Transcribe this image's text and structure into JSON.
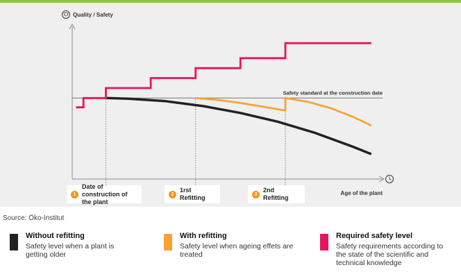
{
  "colors": {
    "accent_rule": "#8cc63f",
    "panel_bg": "#efefef",
    "without": "#222222",
    "with": "#f7a435",
    "required": "#e8145f",
    "standard_line": "#777777"
  },
  "chart_data": {
    "type": "line",
    "ylabel": "Quality / Safety",
    "xlabel": "Age of the plant",
    "y_axis_icon": "shield-icon",
    "x_axis_icon": "clock-icon",
    "grid": false,
    "reference_line": {
      "label": "Safety standard at the construction date",
      "y": 0
    },
    "series": [
      {
        "name": "Required safety level",
        "key": "required",
        "points": [
          [
            -4,
            -1.5
          ],
          [
            -2,
            -1.5
          ],
          [
            -2,
            0
          ],
          [
            4,
            0
          ],
          [
            4,
            1.6
          ],
          [
            16,
            1.6
          ],
          [
            16,
            3.2
          ],
          [
            28,
            3.2
          ],
          [
            28,
            4.8
          ],
          [
            40,
            4.8
          ],
          [
            40,
            6.4
          ],
          [
            52,
            6.4
          ],
          [
            52,
            8.8
          ],
          [
            75,
            8.8
          ]
        ]
      },
      {
        "name": "Without refitting",
        "key": "without",
        "points": [
          [
            4,
            0
          ],
          [
            10,
            -0.1
          ],
          [
            20,
            -0.5
          ],
          [
            30,
            -1.3
          ],
          [
            40,
            -2.4
          ],
          [
            50,
            -3.8
          ],
          [
            60,
            -5.6
          ],
          [
            70,
            -7.8
          ],
          [
            75,
            -9.0
          ]
        ]
      },
      {
        "name": "With refitting",
        "key": "with",
        "points": [
          [
            28,
            0
          ],
          [
            34,
            -0.3
          ],
          [
            40,
            -0.8
          ],
          [
            46,
            -1.4
          ],
          [
            52,
            -2.0
          ],
          [
            52,
            0
          ],
          [
            58,
            -0.6
          ],
          [
            64,
            -1.6
          ],
          [
            70,
            -3.0
          ],
          [
            75,
            -4.4
          ]
        ]
      }
    ],
    "markers": [
      {
        "num": "1",
        "label": "Date of construction of the plant",
        "x": 4
      },
      {
        "num": "2",
        "label": "1rst Refitting",
        "x": 28
      },
      {
        "num": "3",
        "label": "2nd Refitting",
        "x": 52
      }
    ],
    "xlim": [
      -5,
      78
    ],
    "ylim": [
      -13,
      11.5
    ]
  },
  "source": "Source: Öko-Institut",
  "legend": [
    {
      "key": "without",
      "title": "Without refitting",
      "desc": "Safety level when a plant is getting older"
    },
    {
      "key": "with",
      "title": "With refitting",
      "desc": "Safety level when ageing effets are treated"
    },
    {
      "key": "required",
      "title": "Required safety level",
      "desc": "Safety requirements according to the state of the scientific and technical knowledge"
    }
  ]
}
